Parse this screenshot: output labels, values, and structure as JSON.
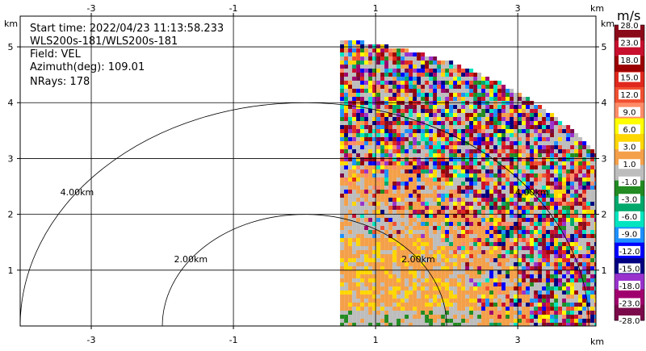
{
  "chart_data": {
    "type": "heatmap",
    "info": {
      "start_time": "Start time: 2022/04/23 11:13:58.233",
      "instrument": "WLS200s-181/WLS200s-181",
      "field": "Field: VEL",
      "azimuth": "Azimuth(deg): 109.01",
      "nrays": "NRays: 178"
    },
    "x_unit_label": "km",
    "y_unit_label": "km",
    "xlim": [
      -4.0,
      4.1
    ],
    "ylim": [
      0,
      5.55
    ],
    "x_ticks": [
      -3,
      -1,
      1,
      3
    ],
    "x_tick_labels": [
      "-3",
      "-1",
      "1",
      "3"
    ],
    "y_ticks": [
      1,
      2,
      3,
      4,
      5
    ],
    "y_tick_labels": [
      "1",
      "2",
      "3",
      "4",
      "5"
    ],
    "grid": true,
    "range_rings": [
      {
        "radius_km": 2.0,
        "label": "2.00km"
      },
      {
        "radius_km": 4.0,
        "label": "4.00km"
      }
    ],
    "sector": {
      "x_min": 0.5,
      "max_range_km": 5.15
    },
    "colorbar": {
      "unit": "m/s",
      "ticks": [
        "28.0",
        "23.0",
        "18.0",
        "15.0",
        "12.0",
        "9.0",
        "6.0",
        "3.0",
        "1.0",
        "-1.0",
        "-3.0",
        "-6.0",
        "-9.0",
        "-12.0",
        "-15.0",
        "-18.0",
        "-23.0",
        "-28.0"
      ],
      "colors": [
        "#8b0a1a",
        "#c8102e",
        "#9b0000",
        "#e0281e",
        "#f05032",
        "#ff8c69",
        "#ffff00",
        "#ffd700",
        "#f4a04a",
        "#bdbdbd",
        "#228b22",
        "#00a86b",
        "#00e5c0",
        "#1e90ff",
        "#0000ff",
        "#000080",
        "#9932cc",
        "#a0006e",
        "#7a0a4a"
      ]
    }
  }
}
